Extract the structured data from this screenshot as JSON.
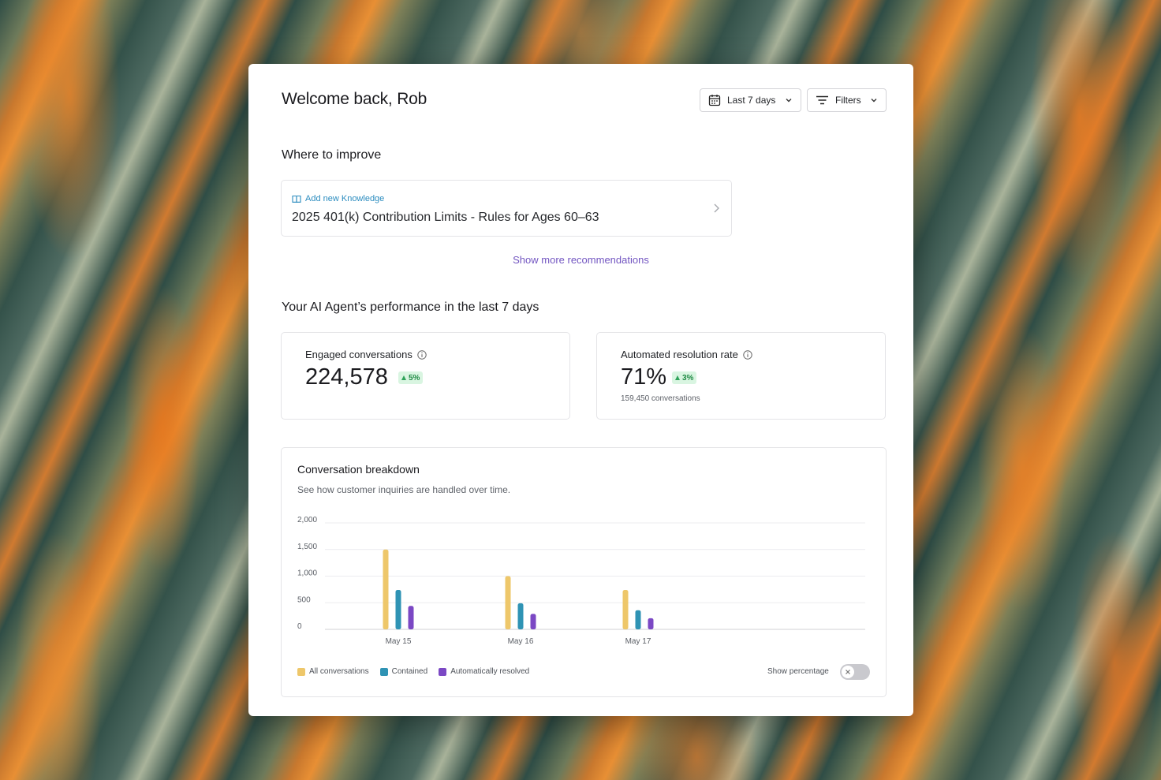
{
  "header": {
    "welcome": "Welcome back, Rob",
    "date_range": "Last 7 days",
    "filters": "Filters"
  },
  "improve": {
    "title": "Where to improve",
    "recommendation": {
      "tag": "Add new Knowledge",
      "title": "2025 401(k) Contribution Limits - Rules for Ages 60–63"
    },
    "show_more": "Show more recommendations"
  },
  "performance": {
    "title": "Your AI Agent’s performance in the last 7 days",
    "engaged": {
      "label": "Engaged conversations",
      "value": "224,578",
      "change": "5%"
    },
    "resolution": {
      "label": "Automated resolution rate",
      "value": "71%",
      "change": "3%",
      "sub": "159,450 conversations"
    }
  },
  "breakdown": {
    "title": "Conversation breakdown",
    "subtitle": "See how customer inquiries are handled over time.",
    "show_percentage_label": "Show percentage",
    "show_percentage_on": false
  },
  "chart_data": {
    "type": "bar",
    "categories": [
      "May 15",
      "May 16",
      "May 17"
    ],
    "series": [
      {
        "name": "All conversations",
        "values": [
          1500,
          1000,
          740
        ],
        "color": "#eec76a"
      },
      {
        "name": "Contained",
        "values": [
          740,
          490,
          360
        ],
        "color": "#2f93b4"
      },
      {
        "name": "Automatically resolved",
        "values": [
          440,
          290,
          210
        ],
        "color": "#7b48c4"
      }
    ],
    "yticks": [
      "2,000",
      "1,500",
      "1,000",
      "500",
      "0"
    ],
    "ylim": [
      0,
      2000
    ],
    "grid": true,
    "legend": "bottom-left"
  }
}
